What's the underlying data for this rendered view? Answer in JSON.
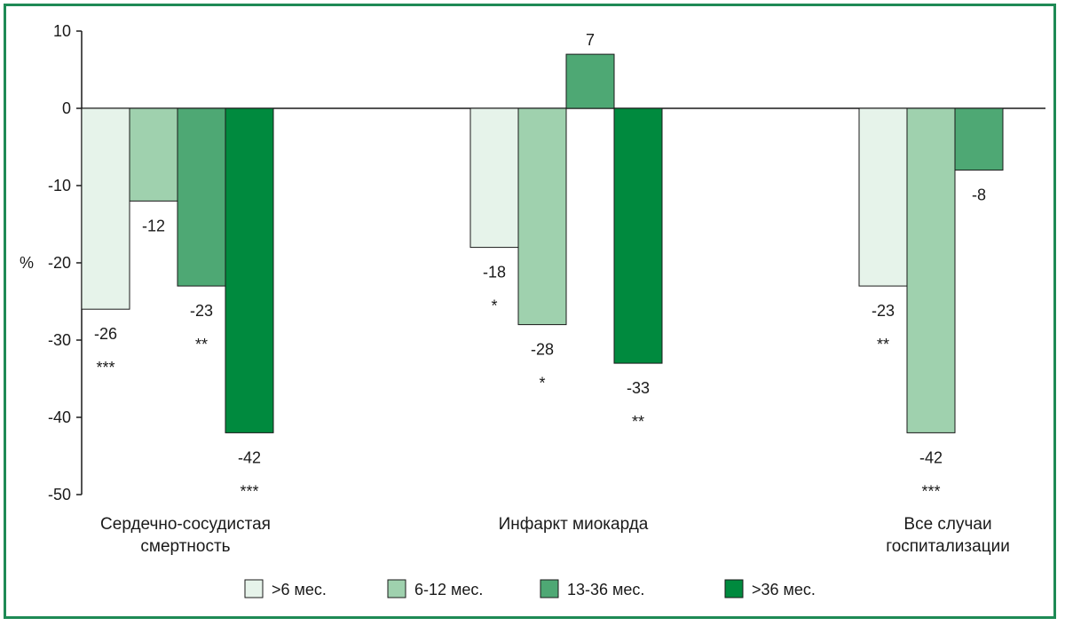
{
  "chart_data": {
    "type": "bar",
    "ylabel": "%",
    "ylim": [
      -50,
      10
    ],
    "yticks": [
      10,
      0,
      -10,
      -20,
      -30,
      -40,
      -50
    ],
    "categories": [
      [
        "Сердечно-сосудистая",
        "смертность"
      ],
      [
        "Инфаркт миокарда"
      ],
      [
        "Все случаи",
        "госпитализации"
      ]
    ],
    "series": [
      {
        "name": ">6 мес.",
        "color": "#e6f3ea",
        "values": [
          -26,
          -18,
          -23
        ],
        "labels": [
          "-26",
          "-18",
          "-23"
        ],
        "sig": [
          "***",
          "*",
          "**"
        ]
      },
      {
        "name": "6-12 мес.",
        "color": "#9fd1ae",
        "values": [
          -12,
          -28,
          -42
        ],
        "labels": [
          "-12",
          "-28",
          "-42"
        ],
        "sig": [
          "",
          "*",
          "***"
        ]
      },
      {
        "name": "13-36 мес.",
        "color": "#4ea874",
        "values": [
          -23,
          7,
          -8
        ],
        "labels": [
          "-23",
          "7",
          "-8"
        ],
        "sig": [
          "**",
          "",
          ""
        ]
      },
      {
        "name": ">36 мес.",
        "color": "#008a3e",
        "values": [
          -42,
          -33,
          null
        ],
        "labels": [
          "-42",
          "-33",
          ""
        ],
        "sig": [
          "***",
          "**",
          ""
        ]
      }
    ],
    "legend_position": "bottom",
    "grid": false
  }
}
